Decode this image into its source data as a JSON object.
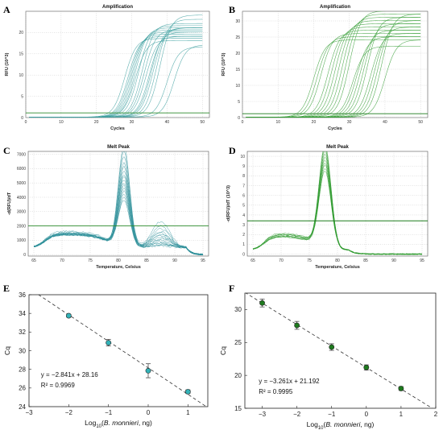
{
  "chart_data": [
    {
      "panel": "A",
      "type": "line",
      "title": "Amplification",
      "xlabel": "Cycles",
      "ylabel": "RFU (10^3)",
      "xlim": [
        0,
        52
      ],
      "ylim": [
        0,
        25
      ],
      "xticks": [
        0,
        10,
        20,
        30,
        40,
        50
      ],
      "yticks": [
        0,
        5,
        10,
        15,
        20
      ],
      "color": "#3a9e9e",
      "threshold_color": "#2a8a2a",
      "threshold": 1.1,
      "series_params": {
        "plateau": [
          18.5,
          19,
          19.5,
          20,
          20.5,
          21,
          21.5,
          22,
          19,
          20,
          21,
          23,
          24,
          16.5,
          17,
          18,
          20.5,
          21
        ],
        "ct": [
          28,
          29,
          29.5,
          30,
          30.5,
          31,
          32,
          33,
          34,
          35,
          36,
          37,
          38,
          40,
          42,
          31,
          33.5,
          35.5
        ]
      }
    },
    {
      "panel": "B",
      "type": "line",
      "title": "Amplification",
      "xlabel": "Cycles",
      "ylabel": "RFU (10^3)",
      "xlim": [
        0,
        52
      ],
      "ylim": [
        0,
        33
      ],
      "xticks": [
        0,
        10,
        20,
        30,
        40,
        50
      ],
      "yticks": [
        0,
        5,
        10,
        15,
        20,
        25,
        30
      ],
      "color": "#2e9a2e",
      "threshold_color": "#1a7a1a",
      "threshold": 1.2,
      "series_params": {
        "plateau": [
          24,
          25,
          26,
          27,
          28,
          29,
          30,
          31,
          32,
          33,
          22,
          25,
          27,
          29,
          31,
          26,
          28,
          30,
          32,
          24
        ],
        "ct": [
          20,
          21,
          22,
          24,
          25,
          26,
          27,
          28,
          29,
          30,
          31,
          32,
          33,
          34,
          35,
          36,
          37,
          38,
          39,
          40
        ]
      }
    },
    {
      "panel": "C",
      "type": "line",
      "title": "Melt Peak",
      "xlabel": "Temperature, Celsius",
      "ylabel": "-d(RFU)/dT",
      "xlim": [
        64,
        96
      ],
      "ylim": [
        -100,
        7200
      ],
      "xticks": [
        65,
        70,
        75,
        80,
        85,
        90,
        95
      ],
      "yticks": [
        0,
        1000,
        2000,
        3000,
        4000,
        5000,
        6000,
        7000
      ],
      "color": "#2c8f99",
      "threshold_color": "#2a8a2a",
      "threshold": 2000,
      "series_params": {
        "peak": [
          7000,
          6600,
          6200,
          5800,
          5500,
          5200,
          5000,
          4800,
          4600,
          4400,
          4200,
          4000,
          3800,
          3600,
          3400,
          3200
        ],
        "side": [
          1800,
          1500,
          1300,
          1100,
          1000,
          900,
          800,
          700,
          600,
          500,
          400,
          300,
          300,
          200,
          200,
          100
        ]
      }
    },
    {
      "panel": "D",
      "type": "line",
      "title": "Melt Peak",
      "xlabel": "Temperature, Celsius",
      "ylabel": "-d(RFU)/dT (10^3)",
      "xlim": [
        64,
        96
      ],
      "ylim": [
        -0.2,
        10.5
      ],
      "xticks": [
        65,
        70,
        75,
        80,
        85,
        90,
        95
      ],
      "yticks": [
        0,
        1,
        2,
        3,
        4,
        5,
        6,
        7,
        8,
        9,
        10
      ],
      "color": "#2e9a2e",
      "threshold_color": "#1a7a1a",
      "threshold": 3.4,
      "series_params": {
        "peak": [
          10.4,
          10.1,
          9.8,
          9.5,
          9.2,
          8.9,
          8.6,
          8.3,
          8.0,
          7.8
        ]
      }
    },
    {
      "panel": "E",
      "type": "scatter",
      "xlabel_prefix": "Log",
      "xlabel_sub": "10",
      "xlabel_open": "(",
      "xlabel_italic": "B. monnieri",
      "xlabel_rest": ", ng)",
      "ylabel": "Cq",
      "xlim": [
        -3,
        1.5
      ],
      "ylim": [
        24,
        36
      ],
      "xticks": [
        -3,
        -2,
        -1,
        0,
        1
      ],
      "yticks": [
        24,
        26,
        28,
        30,
        32,
        34,
        36
      ],
      "x": [
        -2,
        -1,
        0,
        1
      ],
      "y": [
        33.75,
        30.85,
        27.85,
        25.6
      ],
      "err": [
        0.15,
        0.35,
        0.75,
        0.2
      ],
      "fit_slope": -2.841,
      "fit_intercept": 28.16,
      "equation": "y = −2.841x + 28.16",
      "r2": "R² = 0.9969",
      "marker_color": "#33b3b8"
    },
    {
      "panel": "F",
      "type": "scatter",
      "xlabel_prefix": "Log",
      "xlabel_sub": "10",
      "xlabel_open": "(",
      "xlabel_italic": "B. monnieri",
      "xlabel_rest": ", ng)",
      "ylabel": "Cq",
      "xlim": [
        -3.5,
        2
      ],
      "ylim": [
        15,
        32.5
      ],
      "xticks": [
        -3,
        -2,
        -1,
        0,
        1,
        2
      ],
      "yticks": [
        15,
        20,
        25,
        30
      ],
      "x": [
        -3,
        -2,
        -1,
        0,
        1
      ],
      "y": [
        31.0,
        27.6,
        24.3,
        21.2,
        18.0
      ],
      "err": [
        0.6,
        0.6,
        0.5,
        0.4,
        0.3
      ],
      "fit_slope": -3.261,
      "fit_intercept": 21.192,
      "equation": "y = −3.261x + 21.192",
      "r2": "R² = 0.9995",
      "marker_color": "#1e7a1e"
    }
  ]
}
